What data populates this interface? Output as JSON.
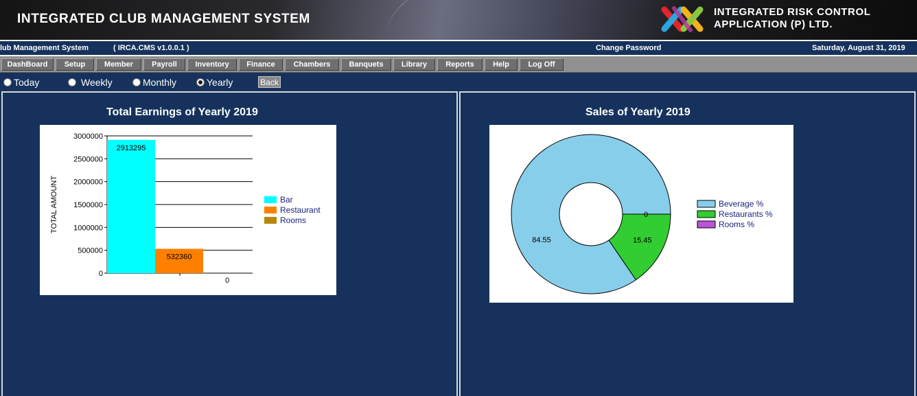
{
  "header": {
    "app_title": "INTEGRATED CLUB MANAGEMENT SYSTEM",
    "company_line1": "INTEGRATED RISK CONTROL",
    "company_line2": "APPLICATION (P) LTD."
  },
  "infobar": {
    "system_name": "lub Management System",
    "version": "( IRCA.CMS v1.0.0.1 )",
    "change_password": "Change Password",
    "date": "Saturday, August 31, 2019"
  },
  "menu": [
    "DashBoard",
    "Setup",
    "Member",
    "Payroll",
    "Inventory",
    "Finance",
    "Chambers",
    "Banquets",
    "Library",
    "Reports",
    "Help",
    "Log Off"
  ],
  "period": {
    "options": [
      "Today",
      "Weekly",
      "Monthly",
      "Yearly"
    ],
    "selected": "Yearly",
    "back_label": "Back"
  },
  "colors": {
    "page_bg": "#16325c",
    "bar": "#00ffff",
    "restaurant": "#ff8000",
    "rooms": "#b8860b",
    "beverage_slice": "#87ceeb",
    "restaurants_slice": "#32cd32",
    "rooms_slice": "#ba55d3"
  },
  "earnings_panel": {
    "title": "Total Earnings of Yearly 2019"
  },
  "sales_panel": {
    "title": "Sales of Yearly 2019"
  },
  "chart_data": [
    {
      "type": "bar",
      "title": "Total Earnings of Yearly 2019",
      "ylabel": "TOTAL AMOUNT",
      "xlabel": "",
      "ylim": [
        0,
        3000000
      ],
      "yticks": [
        "0",
        "500000",
        "1000000",
        "1500000",
        "2000000",
        "2500000",
        "3000000"
      ],
      "grid": true,
      "legend_position": "right",
      "series": [
        {
          "name": "Bar",
          "values": [
            2913295
          ],
          "labels": [
            "2913295"
          ],
          "color": "#00ffff"
        },
        {
          "name": "Restaurant",
          "values": [
            532360
          ],
          "labels": [
            "532360"
          ],
          "color": "#ff8000"
        },
        {
          "name": "Rooms",
          "values": [
            0
          ],
          "labels": [
            "0"
          ],
          "color": "#b8860b"
        }
      ]
    },
    {
      "type": "pie",
      "title": "Sales of Yearly 2019",
      "donut": true,
      "legend_position": "right",
      "slices": [
        {
          "name": "Beverage %",
          "value": 84.55,
          "label": "84.55",
          "color": "#87ceeb"
        },
        {
          "name": "Restaurants %",
          "value": 15.45,
          "label": "15.45",
          "color": "#32cd32"
        },
        {
          "name": "Rooms %",
          "value": 0,
          "label": "0",
          "color": "#ba55d3"
        }
      ]
    }
  ]
}
